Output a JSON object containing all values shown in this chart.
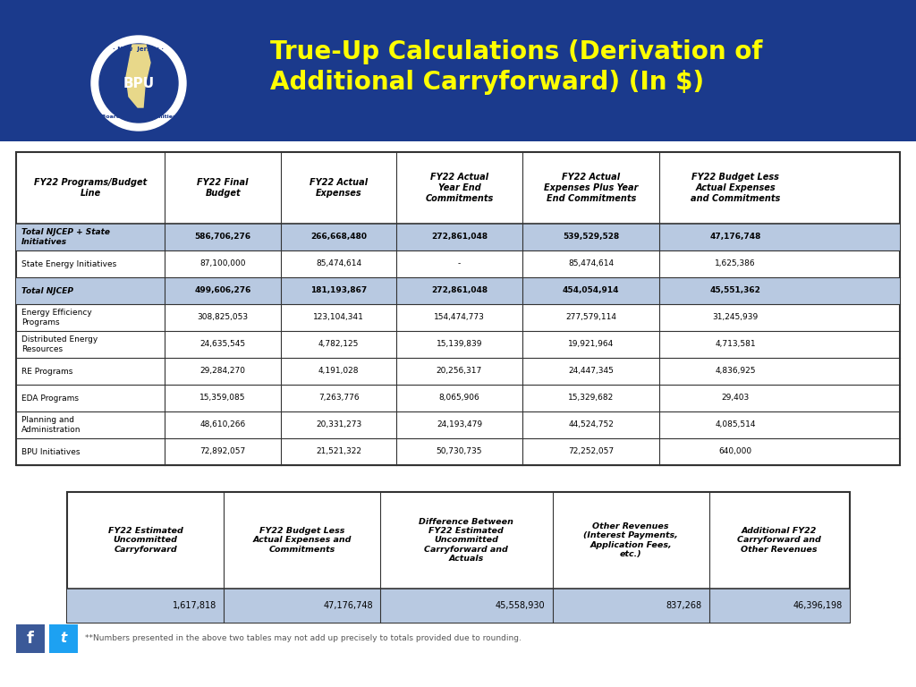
{
  "title_line1": "True-Up Calculations (Derivation of",
  "title_line2": "Additional Carryforward) (In $)",
  "title_color": "#FFFF00",
  "header_bg": "#1B3A8C",
  "bg_color": "#FFFFFF",
  "table1_headers": [
    "FY22 Programs/Budget\nLine",
    "FY22 Final\nBudget",
    "FY22 Actual\nExpenses",
    "FY22 Actual\nYear End\nCommitments",
    "FY22 Actual\nExpenses Plus Year\nEnd Commitments",
    "FY22 Budget Less\nActual Expenses\nand Commitments"
  ],
  "table1_rows": [
    [
      "Total NJCEP + State\nInitiatives",
      "586,706,276",
      "266,668,480",
      "272,861,048",
      "539,529,528",
      "47,176,748"
    ],
    [
      "State Energy Initiatives",
      "87,100,000",
      "85,474,614",
      "-",
      "85,474,614",
      "1,625,386"
    ],
    [
      "Total NJCEP",
      "499,606,276",
      "181,193,867",
      "272,861,048",
      "454,054,914",
      "45,551,362"
    ],
    [
      "Energy Efficiency\nPrograms",
      "308,825,053",
      "123,104,341",
      "154,474,773",
      "277,579,114",
      "31,245,939"
    ],
    [
      "Distributed Energy\nResources",
      "24,635,545",
      "4,782,125",
      "15,139,839",
      "19,921,964",
      "4,713,581"
    ],
    [
      "RE Programs",
      "29,284,270",
      "4,191,028",
      "20,256,317",
      "24,447,345",
      "4,836,925"
    ],
    [
      "EDA Programs",
      "15,359,085",
      "7,263,776",
      "8,065,906",
      "15,329,682",
      "29,403"
    ],
    [
      "Planning and\nAdministration",
      "48,610,266",
      "20,331,273",
      "24,193,479",
      "44,524,752",
      "4,085,514"
    ],
    [
      "BPU Initiatives",
      "72,892,057",
      "21,521,322",
      "50,730,735",
      "72,252,057",
      "640,000"
    ]
  ],
  "table1_row_styles": [
    "shaded",
    "white",
    "shaded",
    "white",
    "white",
    "white",
    "white",
    "white",
    "white"
  ],
  "table1_row_bold": [
    true,
    false,
    true,
    false,
    false,
    false,
    false,
    false,
    false
  ],
  "table2_headers": [
    "FY22 Estimated\nUncommitted\nCarryforward",
    "FY22 Budget Less\nActual Expenses and\nCommitments",
    "Difference Between\nFY22 Estimated\nUncommitted\nCarryforward and\nActuals",
    "Other Revenues\n(Interest Payments,\nApplication Fees,\netc.)",
    "Additional FY22\nCarryforward and\nOther Revenues"
  ],
  "table2_data": [
    "1,617,818",
    "47,176,748",
    "45,558,930",
    "837,268",
    "46,396,198"
  ],
  "shaded_color": "#B8C9E1",
  "border_color": "#333333",
  "footnote": "**Numbers presented in the above two tables may not add up precisely to totals provided due to rounding."
}
